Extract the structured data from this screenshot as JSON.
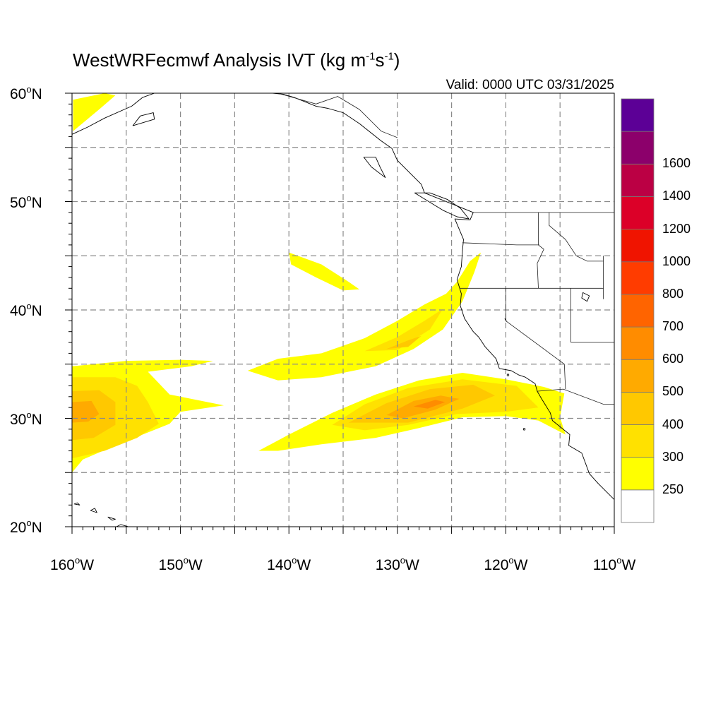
{
  "title": {
    "main": "WestWRFecmwf Analysis IVT (kg m",
    "exp1": "-1",
    "mid": "s",
    "exp2": "-1",
    "end": ")"
  },
  "valid_text": "Valid: 0000 UTC 03/31/2025",
  "map": {
    "projection": "cylindrical-equidistant",
    "lon_range": [
      -160,
      -110
    ],
    "lat_range": [
      20,
      60
    ],
    "lat_ticks": [
      {
        "lat": 60,
        "label": "60",
        "hemi": "N"
      },
      {
        "lat": 50,
        "label": "50",
        "hemi": "N"
      },
      {
        "lat": 40,
        "label": "40",
        "hemi": "N"
      },
      {
        "lat": 30,
        "label": "30",
        "hemi": "N"
      },
      {
        "lat": 20,
        "label": "20",
        "hemi": "N"
      }
    ],
    "lon_ticks": [
      {
        "lon": -160,
        "label": "160",
        "hemi": "W"
      },
      {
        "lon": -150,
        "label": "150",
        "hemi": "W"
      },
      {
        "lon": -140,
        "label": "140",
        "hemi": "W"
      },
      {
        "lon": -130,
        "label": "130",
        "hemi": "W"
      },
      {
        "lon": -120,
        "label": "120",
        "hemi": "W"
      },
      {
        "lon": -110,
        "label": "110",
        "hemi": "W"
      }
    ],
    "gridline_spacing_deg": 5,
    "degree_symbol": "o"
  },
  "colorbar": {
    "levels": [
      {
        "value": "250",
        "color": "#ffff00"
      },
      {
        "value": "300",
        "color": "#ffe100"
      },
      {
        "value": "400",
        "color": "#ffc800"
      },
      {
        "value": "500",
        "color": "#ffaa00"
      },
      {
        "value": "600",
        "color": "#ff8c00"
      },
      {
        "value": "700",
        "color": "#ff6400"
      },
      {
        "value": "800",
        "color": "#ff3c00"
      },
      {
        "value": "1000",
        "color": "#f01400"
      },
      {
        "value": "1200",
        "color": "#dc0028"
      },
      {
        "value": "1400",
        "color": "#bb0044"
      },
      {
        "value": "1600",
        "color": "#8c006b"
      },
      {
        "value": "",
        "color": "#5c0096"
      }
    ],
    "below_color": "#ffffff"
  },
  "ivt_features": [
    {
      "name": "gulf-of-alaska-patch",
      "color": "#ffff00",
      "poly": [
        [
          -159.9,
          59.4
        ],
        [
          -157,
          60
        ],
        [
          -156,
          59.8
        ],
        [
          -157.5,
          58.5
        ],
        [
          -159.9,
          56.5
        ]
      ]
    },
    {
      "name": "plume-west-outer",
      "color": "#ffff00",
      "poly": [
        [
          -160,
          34.8
        ],
        [
          -155,
          35.3
        ],
        [
          -150,
          35.4
        ],
        [
          -147,
          35.3
        ],
        [
          -149,
          34.8
        ],
        [
          -153,
          34.3
        ],
        [
          -151,
          32.2
        ],
        [
          -146,
          31.2
        ],
        [
          -150,
          30.6
        ],
        [
          -151,
          29.5
        ],
        [
          -156,
          27.5
        ],
        [
          -159,
          26.2
        ],
        [
          -160,
          25
        ]
      ]
    },
    {
      "name": "plume-west-300",
      "color": "#ffe100",
      "poly": [
        [
          -160,
          33.8
        ],
        [
          -156,
          33.8
        ],
        [
          -154,
          33
        ],
        [
          -153,
          31.5
        ],
        [
          -152,
          29.5
        ],
        [
          -154,
          28.2
        ],
        [
          -157,
          27
        ],
        [
          -160,
          26.3
        ]
      ]
    },
    {
      "name": "plume-west-400",
      "color": "#ffc800",
      "poly": [
        [
          -160,
          32.5
        ],
        [
          -157.5,
          32.6
        ],
        [
          -156,
          31.5
        ],
        [
          -156,
          29.4
        ],
        [
          -158,
          28.2
        ],
        [
          -160,
          28
        ]
      ]
    },
    {
      "name": "plume-west-500",
      "color": "#ffaa00",
      "poly": [
        [
          -160,
          31.5
        ],
        [
          -158.2,
          31.6
        ],
        [
          -157.5,
          30.4
        ],
        [
          -158.5,
          29.7
        ],
        [
          -160,
          29.6
        ]
      ]
    },
    {
      "name": "oregon-offshore-filament",
      "color": "#ffff00",
      "poly": [
        [
          -140,
          45.3
        ],
        [
          -137,
          44.2
        ],
        [
          -134.5,
          42.6
        ],
        [
          -133.5,
          41.9
        ],
        [
          -135,
          41.8
        ],
        [
          -137.5,
          43
        ],
        [
          -139.8,
          44.2
        ]
      ]
    },
    {
      "name": "plume-central-outer",
      "color": "#ffff00",
      "poly": [
        [
          -143.8,
          34.4
        ],
        [
          -141,
          35.5
        ],
        [
          -137,
          36
        ],
        [
          -133,
          37.4
        ],
        [
          -130,
          39
        ],
        [
          -127.5,
          40.5
        ],
        [
          -125.5,
          41.5
        ],
        [
          -124.5,
          42.6
        ],
        [
          -123.3,
          44.5
        ],
        [
          -122.3,
          45.3
        ],
        [
          -122.9,
          43.5
        ],
        [
          -124,
          40.8
        ],
        [
          -125.8,
          38.2
        ],
        [
          -128.5,
          36.4
        ],
        [
          -132,
          34.8
        ],
        [
          -137,
          33.8
        ],
        [
          -141,
          33.5
        ]
      ]
    },
    {
      "name": "plume-central-300",
      "color": "#ffe100",
      "poly": [
        [
          -133,
          36.2
        ],
        [
          -130,
          37.5
        ],
        [
          -127.5,
          39
        ],
        [
          -125.8,
          40.1
        ],
        [
          -127,
          38.2
        ],
        [
          -130,
          36.3
        ]
      ]
    },
    {
      "name": "plume-central-400",
      "color": "#ffc800",
      "poly": [
        [
          -131,
          36.4
        ],
        [
          -129,
          37.2
        ],
        [
          -127.8,
          37.6
        ],
        [
          -129,
          36.6
        ]
      ]
    },
    {
      "name": "plume-south-outer",
      "color": "#ffff00",
      "poly": [
        [
          -142.8,
          27
        ],
        [
          -140,
          28.5
        ],
        [
          -136,
          30.5
        ],
        [
          -132,
          32.2
        ],
        [
          -128,
          33.5
        ],
        [
          -124,
          34.2
        ],
        [
          -120,
          33.6
        ],
        [
          -116.5,
          32.9
        ],
        [
          -114.6,
          32.3
        ],
        [
          -115,
          30.1
        ],
        [
          -114.5,
          28.5
        ],
        [
          -117,
          29.8
        ],
        [
          -120,
          30.2
        ],
        [
          -124,
          30.1
        ],
        [
          -128,
          29.1
        ],
        [
          -132,
          28.2
        ],
        [
          -137,
          27.6
        ],
        [
          -141,
          27
        ]
      ]
    },
    {
      "name": "plume-south-300",
      "color": "#ffe100",
      "poly": [
        [
          -136,
          29.4
        ],
        [
          -133,
          31.3
        ],
        [
          -129,
          32.8
        ],
        [
          -124,
          33.6
        ],
        [
          -119,
          33
        ],
        [
          -117,
          31
        ],
        [
          -120,
          30.6
        ],
        [
          -124.5,
          30.4
        ],
        [
          -129,
          29.4
        ],
        [
          -133,
          28.9
        ]
      ]
    },
    {
      "name": "plume-south-400",
      "color": "#ffc800",
      "poly": [
        [
          -134.5,
          29.6
        ],
        [
          -131,
          31.4
        ],
        [
          -127,
          32.7
        ],
        [
          -123,
          33.1
        ],
        [
          -121,
          32.1
        ],
        [
          -124,
          30.9
        ],
        [
          -129,
          29.6
        ]
      ]
    },
    {
      "name": "plume-south-500",
      "color": "#ffaa00",
      "poly": [
        [
          -131,
          30.3
        ],
        [
          -128.5,
          31.6
        ],
        [
          -126,
          32.1
        ],
        [
          -124.3,
          31.8
        ],
        [
          -126.5,
          30.8
        ],
        [
          -129.5,
          30
        ]
      ]
    },
    {
      "name": "plume-south-600",
      "color": "#ff8c00",
      "poly": [
        [
          -128.5,
          31.1
        ],
        [
          -126.5,
          31.7
        ],
        [
          -125.6,
          31.5
        ],
        [
          -127.2,
          30.9
        ]
      ]
    }
  ],
  "coastlines": [
    {
      "name": "north-america-west-coast",
      "pts": [
        [
          -110,
          22.5
        ],
        [
          -111.5,
          24
        ],
        [
          -112.3,
          24.9
        ],
        [
          -113,
          26.8
        ],
        [
          -114.2,
          27.5
        ],
        [
          -114.1,
          28.5
        ],
        [
          -115.7,
          29.8
        ],
        [
          -115.9,
          30.5
        ],
        [
          -116.7,
          31.8
        ],
        [
          -117.1,
          32.5
        ],
        [
          -117.3,
          33.2
        ],
        [
          -118.2,
          33.8
        ],
        [
          -118.8,
          34
        ],
        [
          -119.5,
          34.4
        ],
        [
          -120.6,
          34.6
        ],
        [
          -120.9,
          35.5
        ],
        [
          -121.9,
          36.6
        ],
        [
          -122.5,
          37.5
        ],
        [
          -123,
          38
        ],
        [
          -123.8,
          39.2
        ],
        [
          -124.2,
          40.4
        ],
        [
          -124.1,
          41.5
        ],
        [
          -124.5,
          42.8
        ],
        [
          -124.1,
          44
        ],
        [
          -124,
          45.5
        ],
        [
          -123.9,
          46.5
        ],
        [
          -124.7,
          48.4
        ],
        [
          -123.3,
          48.3
        ],
        [
          -123,
          49
        ],
        [
          -125,
          49.8
        ],
        [
          -127.5,
          50.8
        ],
        [
          -127.8,
          51.6
        ],
        [
          -128.6,
          52.4
        ],
        [
          -130,
          53.8
        ],
        [
          -130.5,
          54.9
        ],
        [
          -131.5,
          55.6
        ],
        [
          -133.5,
          57.2
        ],
        [
          -135,
          58.2
        ],
        [
          -136.4,
          58.6
        ],
        [
          -137.5,
          58.8
        ],
        [
          -139.5,
          59.6
        ],
        [
          -140.5,
          59.9
        ],
        [
          -141.5,
          60
        ]
      ]
    },
    {
      "name": "vancouver-island",
      "pts": [
        [
          -123.4,
          48.4
        ],
        [
          -124.5,
          48.6
        ],
        [
          -125.8,
          49.2
        ],
        [
          -127.6,
          50.3
        ],
        [
          -128.4,
          50.8
        ],
        [
          -127,
          50.8
        ],
        [
          -125.4,
          50.2
        ],
        [
          -124.2,
          49.4
        ],
        [
          -123.4,
          48.4
        ]
      ]
    },
    {
      "name": "haida-gwaii",
      "pts": [
        [
          -131.1,
          52.2
        ],
        [
          -132.4,
          53.2
        ],
        [
          -133.1,
          54.1
        ],
        [
          -132,
          54.1
        ],
        [
          -131.6,
          53.2
        ],
        [
          -131.1,
          52.2
        ]
      ]
    },
    {
      "name": "alaska-peninsula",
      "pts": [
        [
          -160,
          56.2
        ],
        [
          -158.5,
          56.9
        ],
        [
          -157,
          57.7
        ],
        [
          -154.5,
          58.8
        ],
        [
          -153.5,
          59.6
        ],
        [
          -152.4,
          60
        ]
      ]
    },
    {
      "name": "kodiak-island",
      "pts": [
        [
          -154.4,
          57.0
        ],
        [
          -152.4,
          57.6
        ],
        [
          -152.5,
          58.2
        ],
        [
          -153.7,
          57.9
        ],
        [
          -154.4,
          57.0
        ]
      ]
    },
    {
      "name": "hawaii-big-island",
      "pts": [
        [
          -155.9,
          20
        ],
        [
          -155.1,
          19.7
        ],
        [
          -154.8,
          20
        ],
        [
          -155.5,
          20.2
        ],
        [
          -155.9,
          20
        ]
      ]
    },
    {
      "name": "maui",
      "pts": [
        [
          -156.7,
          20.9
        ],
        [
          -156,
          20.7
        ],
        [
          -156.3,
          20.6
        ],
        [
          -156.7,
          20.9
        ]
      ]
    },
    {
      "name": "oahu",
      "pts": [
        [
          -158.3,
          21.5
        ],
        [
          -157.7,
          21.3
        ],
        [
          -157.9,
          21.7
        ],
        [
          -158.3,
          21.5
        ]
      ]
    },
    {
      "name": "kauai",
      "pts": [
        [
          -159.8,
          22.1
        ],
        [
          -159.3,
          22
        ],
        [
          -159.5,
          22.2
        ],
        [
          -159.8,
          22.1
        ]
      ]
    },
    {
      "name": "great-salt-lake",
      "pts": [
        [
          -112.9,
          41.6
        ],
        [
          -112.3,
          41.3
        ],
        [
          -112.5,
          40.8
        ],
        [
          -113,
          41.1
        ],
        [
          -112.9,
          41.6
        ]
      ]
    },
    {
      "name": "lake-tahoe",
      "pts": [
        [
          -120.1,
          39.2
        ],
        [
          -119.95,
          38.95
        ],
        [
          -120.0,
          39.1
        ],
        [
          -120.1,
          39.2
        ]
      ]
    }
  ],
  "boundaries": [
    {
      "name": "us-canada-border",
      "pts": [
        [
          -123,
          49
        ],
        [
          -110,
          49
        ]
      ]
    },
    {
      "name": "alaska-bc-border",
      "pts": [
        [
          -141,
          60
        ],
        [
          -137.5,
          59
        ],
        [
          -135.5,
          59.7
        ],
        [
          -133.5,
          58.5
        ],
        [
          -131.5,
          56.5
        ],
        [
          -130,
          55.9
        ]
      ]
    },
    {
      "name": "washington-oregon",
      "pts": [
        [
          -124,
          46.2
        ],
        [
          -119,
          46
        ],
        [
          -116.9,
          46
        ]
      ]
    },
    {
      "name": "oregon-california",
      "pts": [
        [
          -124.2,
          42
        ],
        [
          -117,
          42
        ],
        [
          -111,
          42
        ]
      ]
    },
    {
      "name": "washington-idaho",
      "pts": [
        [
          -117,
          49
        ],
        [
          -117,
          46
        ],
        [
          -116.5,
          45.6
        ],
        [
          -117.1,
          44.3
        ],
        [
          -117,
          42
        ]
      ]
    },
    {
      "name": "california-nevada",
      "pts": [
        [
          -120,
          42
        ],
        [
          -120,
          39
        ],
        [
          -114.6,
          35
        ],
        [
          -114.5,
          32.7
        ]
      ]
    },
    {
      "name": "nevada-utah",
      "pts": [
        [
          -114,
          42
        ],
        [
          -114,
          37
        ]
      ]
    },
    {
      "name": "arizona-utah",
      "pts": [
        [
          -114,
          37
        ],
        [
          -110,
          37
        ]
      ]
    },
    {
      "name": "idaho-montana",
      "pts": [
        [
          -116,
          49
        ],
        [
          -116,
          47.8
        ],
        [
          -114.5,
          46.5
        ],
        [
          -113.5,
          45
        ],
        [
          -112.5,
          44.5
        ],
        [
          -111,
          44.5
        ]
      ]
    },
    {
      "name": "us-mexico-border",
      "pts": [
        [
          -117.1,
          32.5
        ],
        [
          -114.7,
          32.7
        ],
        [
          -111,
          31.3
        ],
        [
          -110,
          31.3
        ]
      ]
    },
    {
      "name": "montana-wyoming",
      "pts": [
        [
          -111,
          45
        ],
        [
          -111,
          41
        ]
      ]
    }
  ],
  "small_islands": [
    {
      "name": "guadalupe-island",
      "lon": -118.3,
      "lat": 29
    },
    {
      "name": "channel-islands",
      "lon": -119.8,
      "lat": 34
    }
  ]
}
